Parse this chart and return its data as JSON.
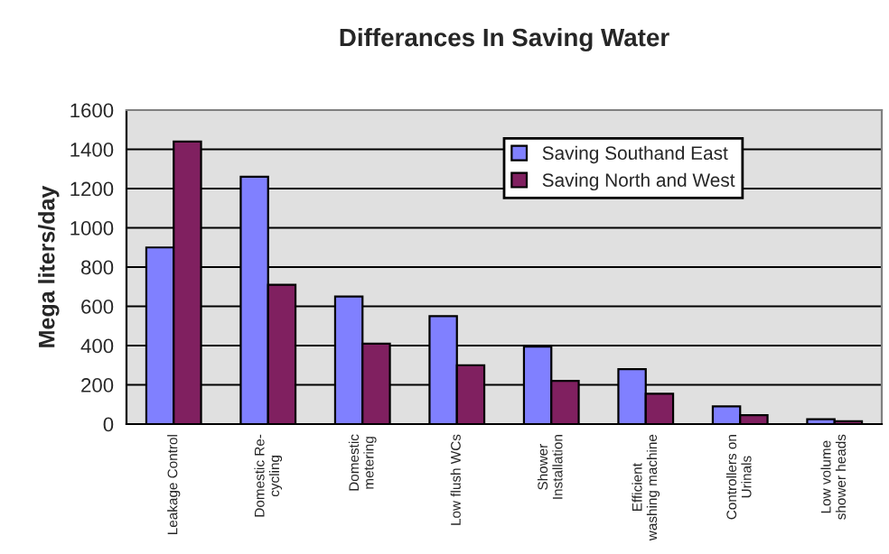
{
  "chart_data": {
    "type": "bar",
    "title": "Differances In Saving Water",
    "ylabel": "Mega liters/day",
    "categories": [
      "Leakage Control",
      "Domestic Re-\ncycling",
      "Domestic\nmetering",
      "Low flush WCs",
      "Shower\nInstallation",
      "Efficient\nwashing machine",
      "Controllers on\nUrinals",
      "Low volume\nshower heads"
    ],
    "series": [
      {
        "name": "Saving Southand East",
        "color": "#8080ff",
        "values": [
          900,
          1260,
          650,
          550,
          395,
          280,
          90,
          25
        ]
      },
      {
        "name": "Saving North and West",
        "color": "#802060",
        "values": [
          1440,
          710,
          410,
          300,
          220,
          155,
          45,
          15
        ]
      }
    ],
    "ylim": [
      0,
      1600
    ],
    "yticks": [
      0,
      200,
      400,
      600,
      800,
      1000,
      1200,
      1400,
      1600
    ],
    "grid": "y",
    "legend": "top right"
  }
}
